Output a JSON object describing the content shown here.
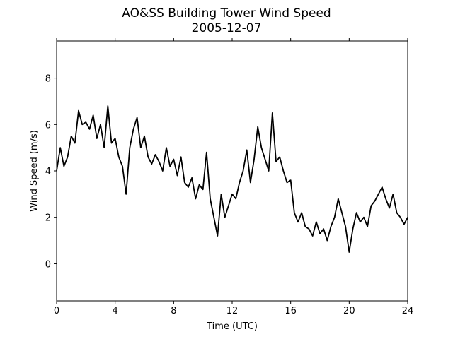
{
  "chart_data": {
    "type": "line",
    "title": "AO&SS Building Tower Wind Speed",
    "subtitle": "2005-12-07",
    "xlabel": "Time (UTC)",
    "ylabel": "Wind Speed (m/s)",
    "xlim": [
      0,
      24
    ],
    "xticks": [
      0,
      4,
      8,
      12,
      16,
      20,
      24
    ],
    "ylim": [
      -1.6,
      9.6
    ],
    "yticks": [
      0,
      2,
      4,
      6,
      8
    ],
    "x": [
      0,
      0.25,
      0.5,
      0.75,
      1,
      1.25,
      1.5,
      1.75,
      2,
      2.25,
      2.5,
      2.75,
      3,
      3.25,
      3.5,
      3.75,
      4,
      4.25,
      4.5,
      4.75,
      5,
      5.25,
      5.5,
      5.75,
      6,
      6.25,
      6.5,
      6.75,
      7,
      7.25,
      7.5,
      7.75,
      8,
      8.25,
      8.5,
      8.75,
      9,
      9.25,
      9.5,
      9.75,
      10,
      10.25,
      10.5,
      10.75,
      11,
      11.25,
      11.5,
      11.75,
      12,
      12.25,
      12.5,
      12.75,
      13,
      13.25,
      13.5,
      13.75,
      14,
      14.25,
      14.5,
      14.75,
      15,
      15.25,
      15.5,
      15.75,
      16,
      16.25,
      16.5,
      16.75,
      17,
      17.25,
      17.5,
      17.75,
      18,
      18.25,
      18.5,
      18.75,
      19,
      19.25,
      19.5,
      19.75,
      20,
      20.25,
      20.5,
      20.75,
      21,
      21.25,
      21.5,
      21.75,
      22,
      22.25,
      22.5,
      22.75,
      23,
      23.25,
      23.5,
      23.75,
      24
    ],
    "series": [
      {
        "name": "Wind Speed",
        "color": "#000000",
        "values": [
          4.0,
          5.0,
          4.2,
          4.6,
          5.5,
          5.2,
          6.6,
          6.0,
          6.1,
          5.8,
          6.4,
          5.4,
          6.0,
          5.0,
          6.8,
          5.2,
          5.4,
          4.6,
          4.2,
          3.0,
          5.0,
          5.8,
          6.3,
          5.0,
          5.5,
          4.6,
          4.3,
          4.7,
          4.4,
          4.0,
          5.0,
          4.2,
          4.5,
          3.8,
          4.6,
          3.5,
          3.3,
          3.7,
          2.8,
          3.4,
          3.2,
          4.8,
          2.8,
          2.0,
          1.2,
          3.0,
          2.0,
          2.5,
          3.0,
          2.8,
          3.5,
          4.0,
          4.9,
          3.5,
          4.5,
          5.9,
          5.0,
          4.5,
          4.0,
          6.5,
          4.4,
          4.6,
          4.0,
          3.5,
          3.6,
          2.2,
          1.8,
          2.2,
          1.6,
          1.5,
          1.2,
          1.8,
          1.3,
          1.5,
          1.0,
          1.6,
          2.0,
          2.8,
          2.2,
          1.6,
          0.5,
          1.5,
          2.2,
          1.8,
          2.0,
          1.6,
          2.5,
          2.7,
          3.0,
          3.3,
          2.8,
          2.4,
          3.0,
          2.2,
          2.0,
          1.7,
          2.0
        ]
      }
    ]
  }
}
